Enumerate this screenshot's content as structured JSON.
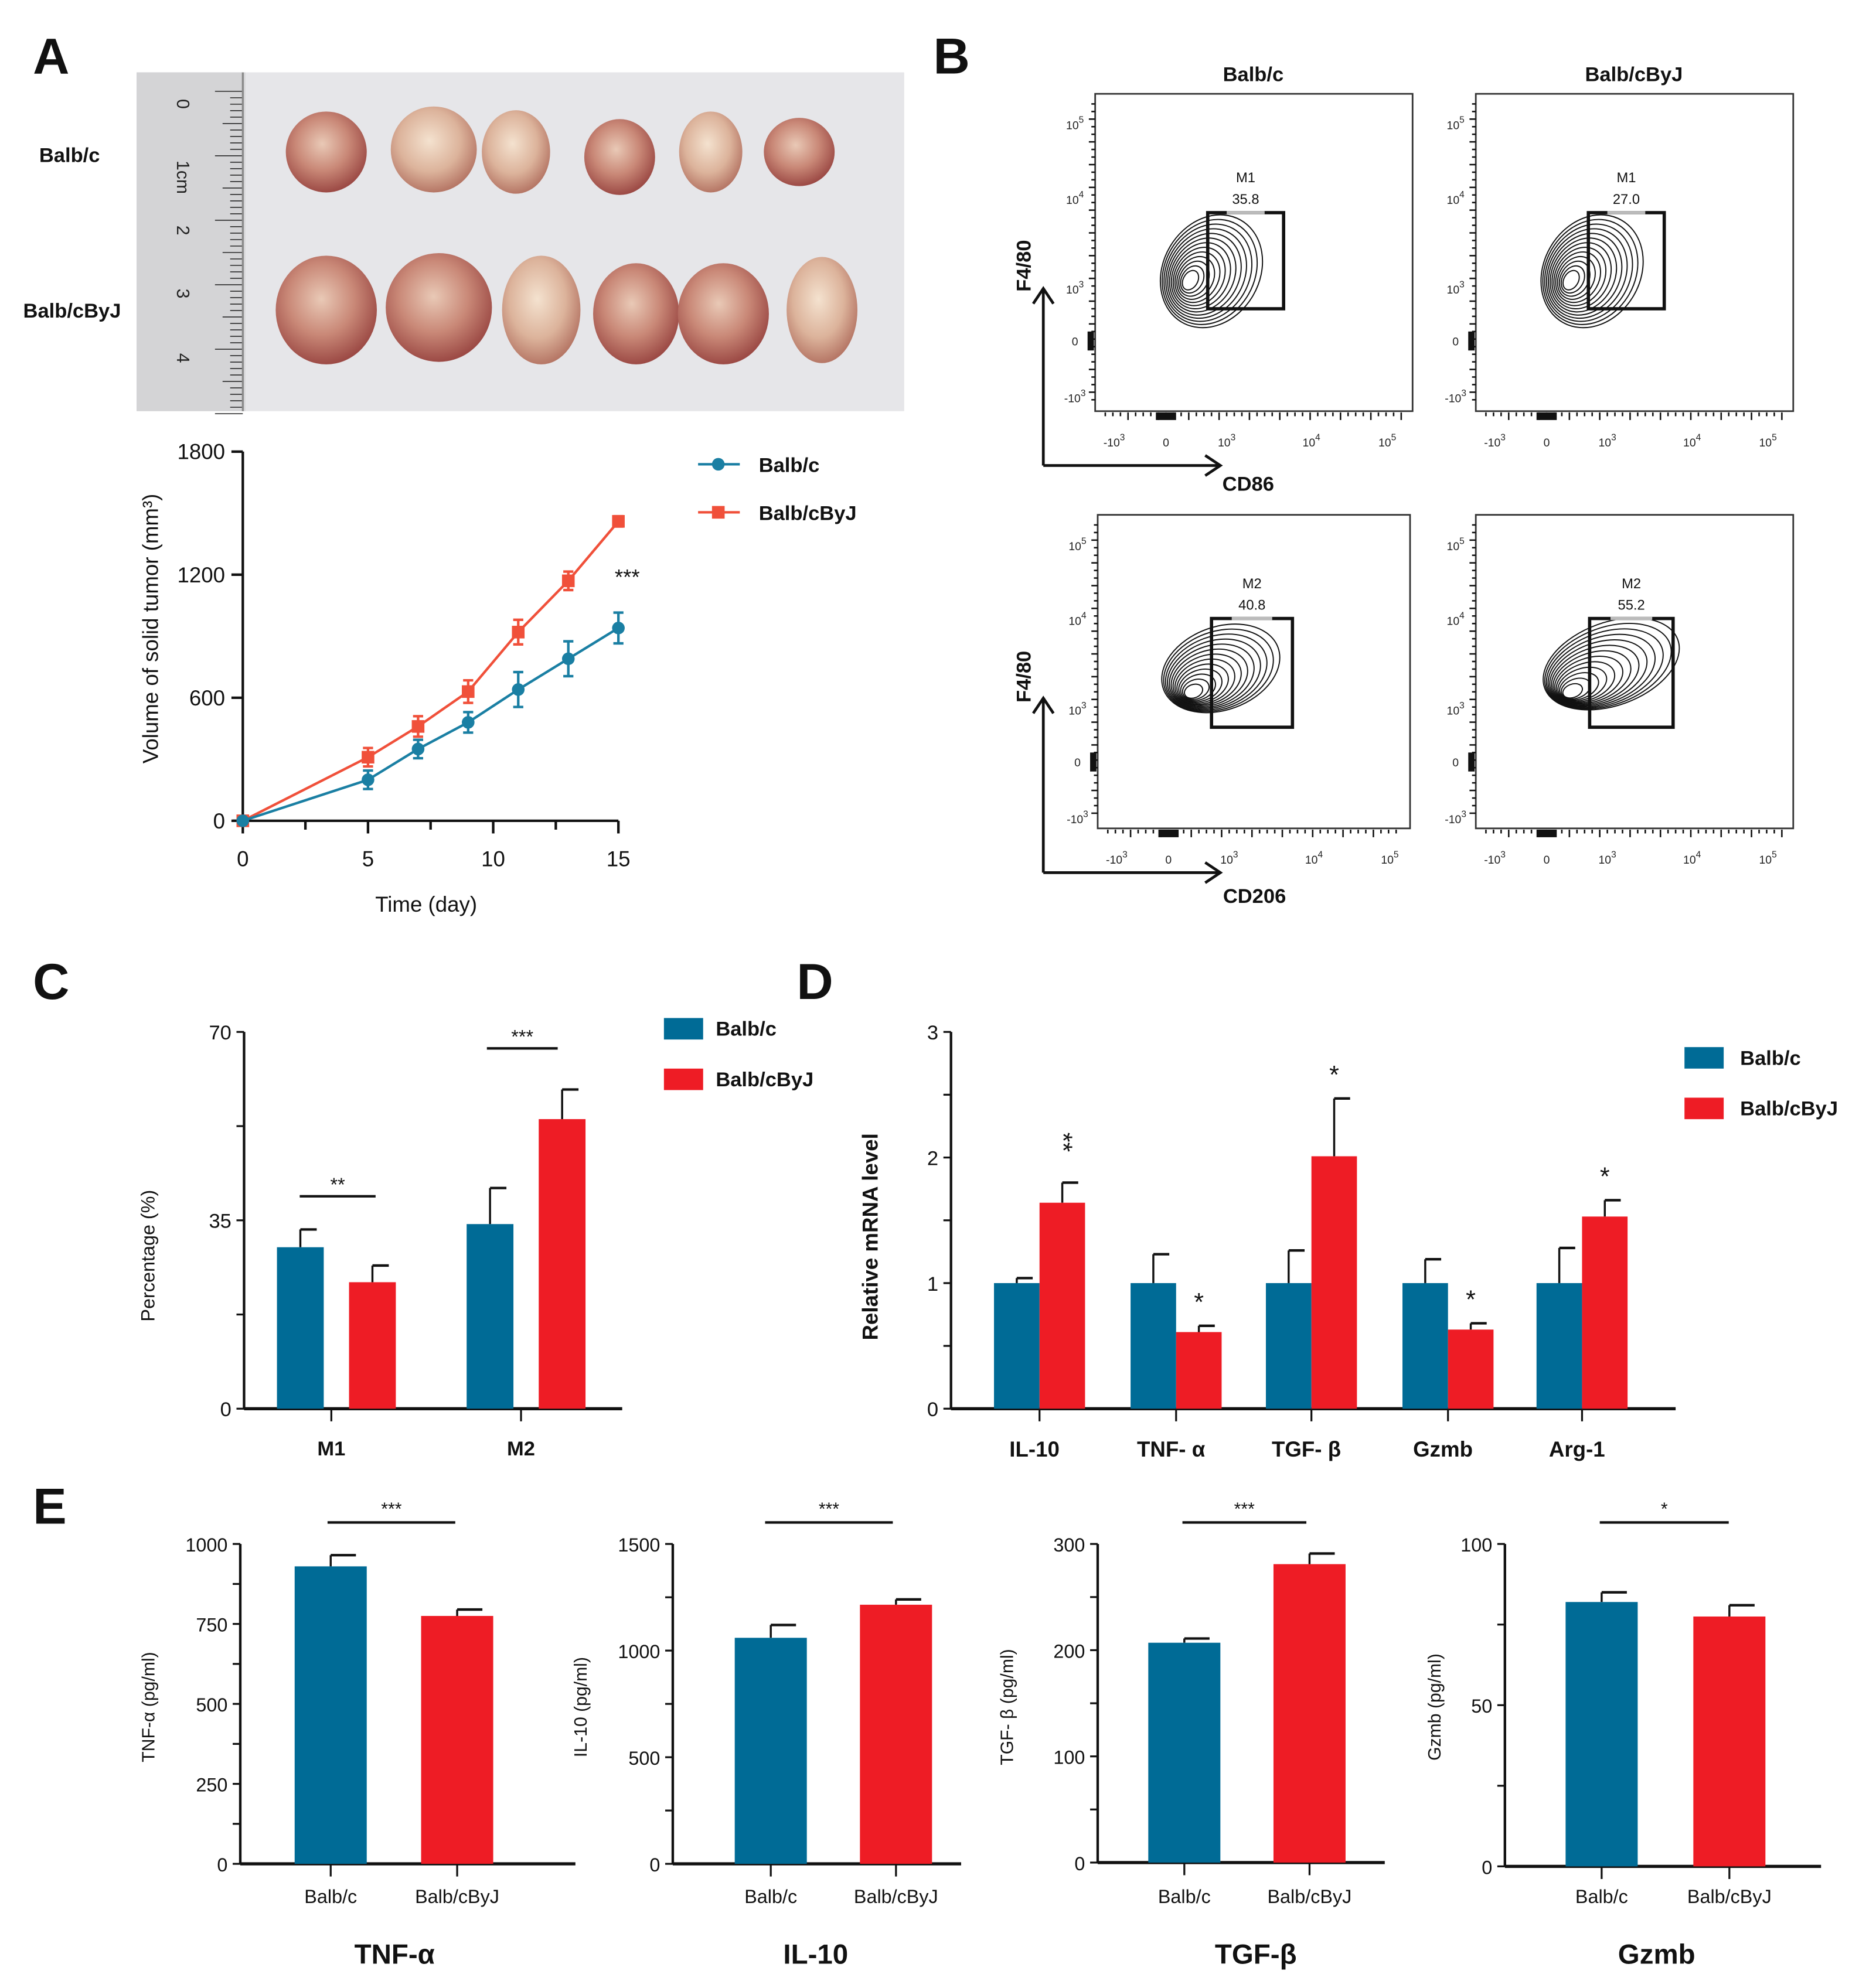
{
  "panels": {
    "a": "A",
    "b": "B",
    "c": "C",
    "d": "D",
    "e": "E"
  },
  "colors": {
    "balbc": "#006b96",
    "balbcbyj": "#ee1c25",
    "line_balbc": "#1a7fa3",
    "line_balbcbyj": "#f0503a"
  },
  "photo": {
    "row_labels": [
      "Balb/c",
      "Balb/cByJ"
    ],
    "ruler_labels": [
      "0",
      "1cm",
      "2",
      "3",
      "4"
    ]
  },
  "flow_cytometry": {
    "columns": [
      "Balb/c",
      "Balb/cByJ"
    ],
    "y_ticks": [
      {
        "base": "10",
        "exp": "5"
      },
      {
        "base": "10",
        "exp": "4"
      },
      {
        "base": "10",
        "exp": "3"
      },
      {
        "base": "0",
        "exp": ""
      },
      {
        "base": "-10",
        "exp": "3"
      }
    ],
    "x_ticks": [
      {
        "base": "-10",
        "exp": "3"
      },
      {
        "base": "0",
        "exp": ""
      },
      {
        "base": "10",
        "exp": "3"
      },
      {
        "base": "10",
        "exp": "4"
      },
      {
        "base": "10",
        "exp": "5"
      }
    ],
    "rows": [
      {
        "x_label": "CD86",
        "y_label": "F4/80",
        "gate": "M1",
        "values": [
          "35.8",
          "27.0"
        ]
      },
      {
        "x_label": "CD206",
        "y_label": "F4/80",
        "gate": "M2",
        "values": [
          "40.8",
          "55.2"
        ]
      }
    ]
  },
  "chart_data": [
    {
      "type": "line",
      "title": "",
      "xlabel": "Time (day)",
      "ylabel": "Volume of solid tumor (mm³)",
      "xlim": [
        0,
        15
      ],
      "ylim": [
        0,
        1800
      ],
      "xticks": [
        0,
        5,
        10,
        15
      ],
      "yticks": [
        0,
        600,
        1200,
        1800
      ],
      "x": [
        0,
        5,
        7,
        9,
        11,
        13,
        15
      ],
      "series": [
        {
          "name": "Balb/c",
          "values": [
            0,
            200,
            350,
            480,
            640,
            790,
            940
          ],
          "errors": [
            0,
            45,
            45,
            50,
            85,
            85,
            75
          ]
        },
        {
          "name": "Balb/cByJ",
          "values": [
            0,
            310,
            460,
            630,
            920,
            1170,
            1460
          ],
          "errors": [
            0,
            45,
            50,
            55,
            60,
            45,
            25
          ]
        }
      ],
      "annotations": [
        "***"
      ],
      "legend": "top-right"
    },
    {
      "type": "bar",
      "xlabel": "",
      "ylabel": "Percentage (%)",
      "ylim": [
        0,
        70
      ],
      "yticks": [
        0,
        35,
        70
      ],
      "categories": [
        "M1",
        "M2"
      ],
      "series": [
        {
          "name": "Balb/c",
          "values": [
            30.0,
            34.3
          ],
          "errors": [
            3.3,
            6.7
          ]
        },
        {
          "name": "Balb/cByJ",
          "values": [
            23.5,
            53.8
          ],
          "errors": [
            3.1,
            5.5
          ]
        }
      ],
      "significance": [
        "**",
        "***"
      ],
      "legend": "top-right"
    },
    {
      "type": "bar",
      "xlabel": "",
      "ylabel": "Relative mRNA level",
      "ylim": [
        0,
        3
      ],
      "yticks": [
        0,
        1,
        2,
        3
      ],
      "categories": [
        "IL-10",
        "TNF- α",
        "TGF- β",
        "Gzmb",
        "Arg-1"
      ],
      "series": [
        {
          "name": "Balb/c",
          "values": [
            1.0,
            1.0,
            1.0,
            1.0,
            1.0
          ],
          "errors": [
            0.04,
            0.23,
            0.26,
            0.19,
            0.28
          ]
        },
        {
          "name": "Balb/cByJ",
          "values": [
            1.64,
            0.61,
            2.01,
            0.63,
            1.53
          ],
          "errors": [
            0.16,
            0.05,
            0.46,
            0.05,
            0.13
          ]
        }
      ],
      "significance": [
        "**",
        "*",
        "*",
        "*",
        "*"
      ],
      "legend": "top-right"
    },
    {
      "type": "bar",
      "title": "TNF-α",
      "ylabel": "TNF-α (pg/ml)",
      "ylim": [
        0,
        1000
      ],
      "yticks": [
        0,
        250,
        500,
        750,
        1000
      ],
      "categories": [
        "Balb/c",
        "Balb/cByJ"
      ],
      "values": [
        930,
        775
      ],
      "errors": [
        35,
        20
      ],
      "significance": "***"
    },
    {
      "type": "bar",
      "title": "IL-10",
      "ylabel": "IL-10 (pg/ml)",
      "ylim": [
        0,
        1500
      ],
      "yticks": [
        0,
        500,
        1000,
        1500
      ],
      "categories": [
        "Balb/c",
        "Balb/cByJ"
      ],
      "values": [
        1060,
        1215
      ],
      "errors": [
        60,
        25
      ],
      "significance": "***"
    },
    {
      "type": "bar",
      "title": "TGF-β",
      "ylabel": "TGF- β (pg/ml)",
      "ylim": [
        0,
        300
      ],
      "yticks": [
        0,
        100,
        200,
        300
      ],
      "categories": [
        "Balb/c",
        "Balb/cByJ"
      ],
      "values": [
        207,
        281
      ],
      "errors": [
        4,
        10
      ],
      "significance": "***"
    },
    {
      "type": "bar",
      "title": "Gzmb",
      "ylabel": "Gzmb (pg/ml)",
      "ylim": [
        0,
        100
      ],
      "yticks": [
        0,
        50,
        100
      ],
      "categories": [
        "Balb/c",
        "Balb/cByJ"
      ],
      "values": [
        82,
        77.5
      ],
      "errors": [
        3,
        3.5
      ],
      "significance": "*"
    }
  ]
}
